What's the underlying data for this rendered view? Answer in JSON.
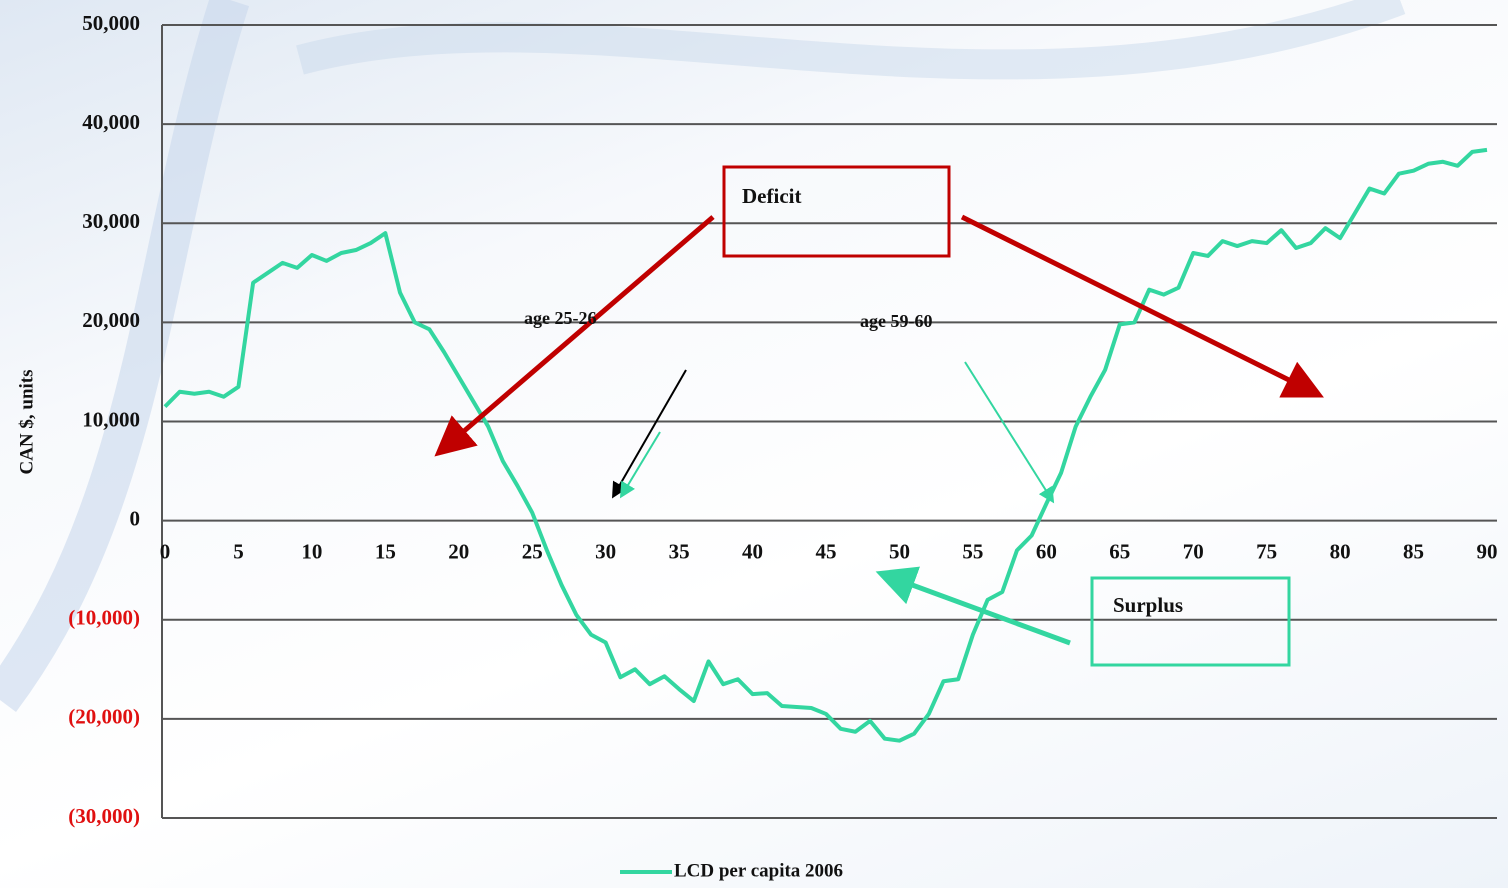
{
  "chart_data": {
    "type": "line",
    "y_label": "CAN $, units",
    "x": [
      0,
      1,
      2,
      3,
      4,
      5,
      6,
      7,
      8,
      9,
      10,
      11,
      12,
      13,
      14,
      15,
      16,
      17,
      18,
      19,
      20,
      21,
      22,
      23,
      24,
      25,
      26,
      27,
      28,
      29,
      30,
      31,
      32,
      33,
      34,
      35,
      36,
      37,
      38,
      39,
      40,
      41,
      42,
      43,
      44,
      45,
      46,
      47,
      48,
      49,
      50,
      51,
      52,
      53,
      54,
      55,
      56,
      57,
      58,
      59,
      60,
      61,
      62,
      63,
      64,
      65,
      66,
      67,
      68,
      69,
      70,
      71,
      72,
      73,
      74,
      75,
      76,
      77,
      78,
      79,
      80,
      81,
      82,
      83,
      84,
      85,
      86,
      87,
      88,
      89,
      90
    ],
    "series": [
      {
        "name": "LCD per capita 2006",
        "color": "#33d6a0",
        "values": [
          11500,
          13000,
          12800,
          13000,
          12500,
          13500,
          24000,
          25000,
          26000,
          25500,
          26800,
          26200,
          27000,
          27300,
          28000,
          29000,
          23000,
          20000,
          19300,
          17000,
          14500,
          12000,
          9500,
          6000,
          3500,
          800,
          -3000,
          -6500,
          -9500,
          -11500,
          -12300,
          -15800,
          -15000,
          -16500,
          -15700,
          -17000,
          -18200,
          -14200,
          -16500,
          -16000,
          -17500,
          -17400,
          -18700,
          -18800,
          -18900,
          -19500,
          -21000,
          -21300,
          -20200,
          -22000,
          -22200,
          -21500,
          -19500,
          -16200,
          -16000,
          -11500,
          -8000,
          -7200,
          -3000,
          -1500,
          1700,
          4800,
          9500,
          12500,
          15200,
          19800,
          20000,
          23300,
          22800,
          23500,
          27000,
          26700,
          28200,
          27700,
          28200,
          28000,
          29300,
          27500,
          28000,
          29500,
          28500,
          31000,
          33500,
          33000,
          35000,
          35300,
          36000,
          36200,
          35800,
          37200,
          37400
        ]
      }
    ],
    "xlim": [
      0,
      90
    ],
    "xticks": [
      0,
      5,
      10,
      15,
      20,
      25,
      30,
      35,
      40,
      45,
      50,
      55,
      60,
      65,
      70,
      75,
      80,
      85,
      90
    ],
    "ylim": [
      -30000,
      50000
    ],
    "yticks": [
      {
        "value": -30000,
        "label": "(30,000)"
      },
      {
        "value": -20000,
        "label": "(20,000)"
      },
      {
        "value": -10000,
        "label": "(10,000)"
      },
      0,
      {
        "value": 10000,
        "label": "10,000"
      },
      {
        "value": 20000,
        "label": "20,000"
      },
      {
        "value": 30000,
        "label": "30,000"
      },
      {
        "value": 40000,
        "label": "40,000"
      },
      {
        "value": 50000,
        "label": "50,000"
      }
    ],
    "negative_tick_color": "#e01010",
    "grid": true,
    "legend": "bottom",
    "annotations": {
      "deficit": "Deficit",
      "surplus": "Surplus",
      "age_early": "age 25-26",
      "age_late": "age 59-60"
    }
  }
}
